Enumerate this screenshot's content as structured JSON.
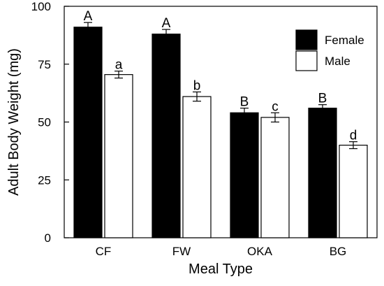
{
  "chart_data": {
    "type": "bar",
    "title": "",
    "xlabel": "Meal Type",
    "ylabel": "Adult Body Weight (mg)",
    "ylim": [
      0,
      100
    ],
    "yticks": [
      0,
      25,
      50,
      75,
      100
    ],
    "categories": [
      "CF",
      "FW",
      "OKA",
      "BG"
    ],
    "series": [
      {
        "name": "Female",
        "color": "#000000",
        "values": [
          91,
          88,
          54,
          56
        ],
        "errors": [
          2,
          2,
          2,
          1.5
        ],
        "sig_labels": [
          "A",
          "A",
          "B",
          "B"
        ]
      },
      {
        "name": "Male",
        "color": "#ffffff",
        "values": [
          70.5,
          61,
          52,
          40
        ],
        "errors": [
          1.5,
          2,
          2,
          1.5
        ],
        "sig_labels": [
          "a",
          "b",
          "c",
          "d"
        ]
      }
    ],
    "legend_position": "top-right",
    "grid": false
  }
}
